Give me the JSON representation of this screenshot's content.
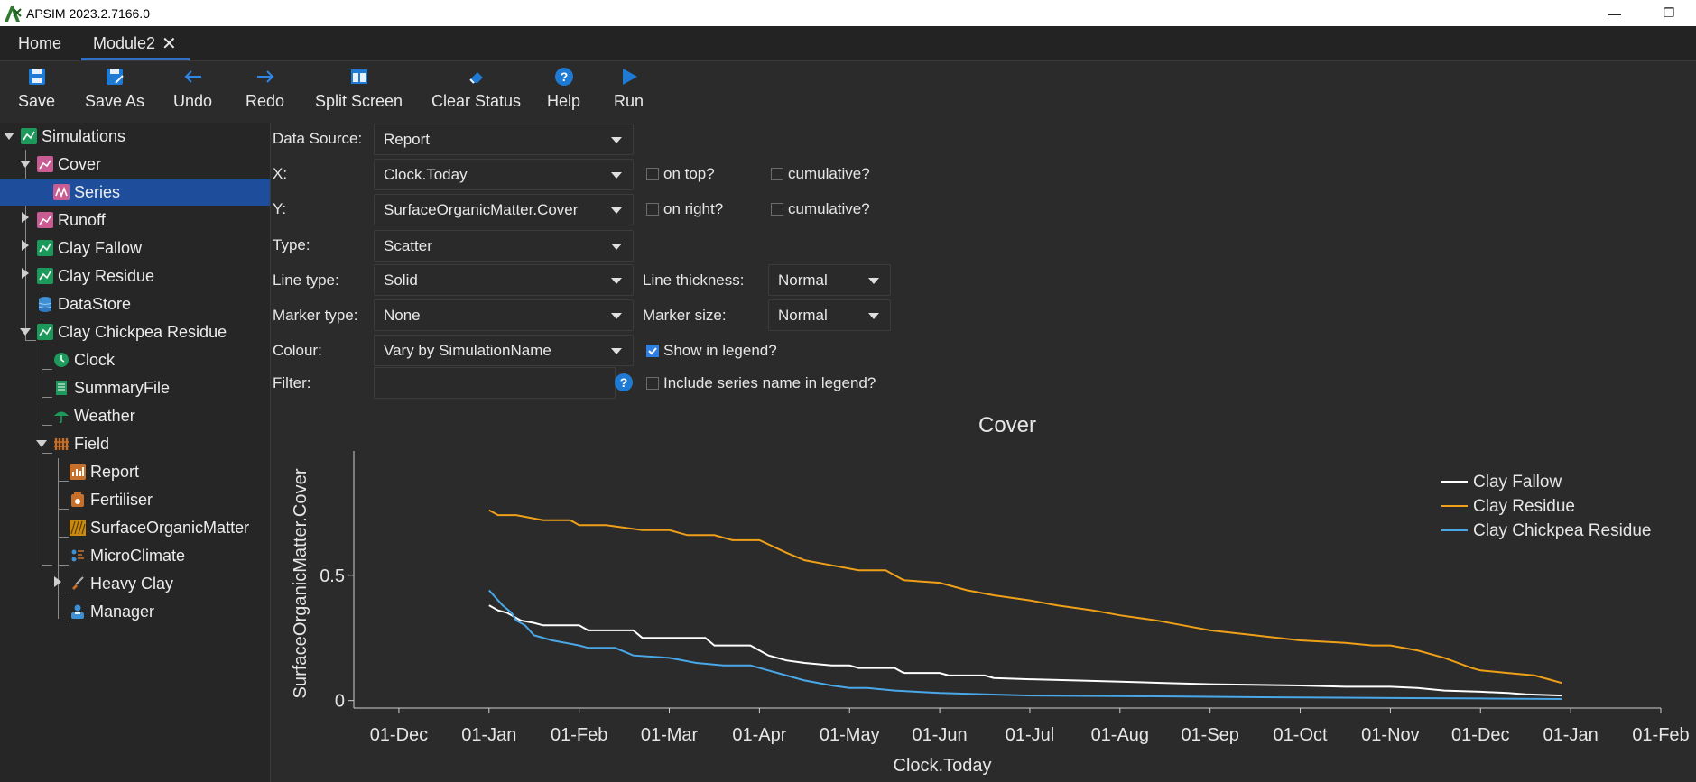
{
  "window": {
    "title": "APSIM 2023.2.7166.0",
    "minimize_glyph": "—",
    "restore_glyph": "❐"
  },
  "tabs": [
    {
      "label": "Home"
    },
    {
      "label": "Module2",
      "close_glyph": "✕"
    }
  ],
  "toolbar": {
    "save": "Save",
    "save_as": "Save As",
    "undo": "Undo",
    "redo": "Redo",
    "split_screen": "Split Screen",
    "clear_status": "Clear Status",
    "help": "Help",
    "run": "Run"
  },
  "tree": {
    "simulations": "Simulations",
    "cover": "Cover",
    "series": "Series",
    "runoff": "Runoff",
    "clay_fallow": "Clay Fallow",
    "clay_residue": "Clay Residue",
    "datastore": "DataStore",
    "clay_chickpea_residue": "Clay Chickpea Residue",
    "clock": "Clock",
    "summaryfile": "SummaryFile",
    "weather": "Weather",
    "field": "Field",
    "report": "Report",
    "fertiliser": "Fertiliser",
    "surface_organic_matter": "SurfaceOrganicMatter",
    "microclimate": "MicroClimate",
    "heavy_clay": "Heavy Clay",
    "manager": "Manager"
  },
  "form": {
    "data_source_label": "Data Source:",
    "data_source_value": "Report",
    "x_label": "X:",
    "x_value": "Clock.Today",
    "y_label": "Y:",
    "y_value": "SurfaceOrganicMatter.Cover",
    "type_label": "Type:",
    "type_value": "Scatter",
    "line_type_label": "Line type:",
    "line_type_value": "Solid",
    "marker_type_label": "Marker type:",
    "marker_type_value": "None",
    "colour_label": "Colour:",
    "colour_value": "Vary by SimulationName",
    "filter_label": "Filter:",
    "filter_value": "",
    "filter_help": "?",
    "on_top": "on top?",
    "on_right": "on right?",
    "cumulative_x": "cumulative?",
    "cumulative_y": "cumulative?",
    "line_thickness_label": "Line thickness:",
    "line_thickness_value": "Normal",
    "marker_size_label": "Marker size:",
    "marker_size_value": "Normal",
    "show_in_legend": "Show in legend?",
    "show_in_legend_checked": true,
    "include_series_name": "Include series name in legend?",
    "include_series_name_checked": false
  },
  "chart_data": {
    "type": "line",
    "title": "Cover",
    "xlabel": "Clock.Today",
    "ylabel": "SurfaceOrganicMatter.Cover",
    "x_ticks": [
      "01-Dec",
      "01-Jan",
      "01-Feb",
      "01-Mar",
      "01-Apr",
      "01-May",
      "01-Jun",
      "01-Jul",
      "01-Aug",
      "01-Sep",
      "01-Oct",
      "01-Nov",
      "01-Dec",
      "01-Jan",
      "01-Feb"
    ],
    "y_ticks": [
      "0",
      "0.5"
    ],
    "xlim_months": [
      -1.5,
      13.0
    ],
    "ylim": [
      -0.03,
      0.96
    ],
    "grid": false,
    "legend_position": "top-right",
    "series": [
      {
        "name": "Clay Fallow",
        "color": "#ffffff",
        "x": [
          0,
          0.1,
          0.2,
          0.3,
          0.35,
          0.5,
          0.6,
          1.0,
          1.1,
          1.6,
          1.7,
          2.4,
          2.5,
          2.9,
          3.0,
          3.1,
          3.3,
          3.5,
          3.8,
          4.0,
          4.1,
          4.5,
          4.6,
          5.0,
          5.1,
          5.5,
          5.6,
          6.0,
          6.5,
          7.0,
          7.5,
          8.0,
          9.0,
          9.5,
          10.0,
          10.3,
          10.6,
          11.0,
          11.3,
          11.5,
          11.9
        ],
        "y": [
          0.38,
          0.36,
          0.35,
          0.33,
          0.32,
          0.31,
          0.3,
          0.3,
          0.28,
          0.28,
          0.25,
          0.25,
          0.22,
          0.22,
          0.2,
          0.18,
          0.16,
          0.15,
          0.14,
          0.14,
          0.13,
          0.13,
          0.11,
          0.11,
          0.1,
          0.1,
          0.09,
          0.085,
          0.08,
          0.075,
          0.07,
          0.065,
          0.06,
          0.055,
          0.055,
          0.05,
          0.04,
          0.035,
          0.03,
          0.025,
          0.02
        ]
      },
      {
        "name": "Clay Residue",
        "color": "#f0a018",
        "x": [
          0,
          0.1,
          0.3,
          0.6,
          0.9,
          1.0,
          1.3,
          1.7,
          2.0,
          2.2,
          2.5,
          2.7,
          3.0,
          3.3,
          3.5,
          3.8,
          4.1,
          4.4,
          4.6,
          5.0,
          5.3,
          5.6,
          6.0,
          6.3,
          6.7,
          7.0,
          7.4,
          7.7,
          8.0,
          8.5,
          9.0,
          9.5,
          9.8,
          10.0,
          10.3,
          10.6,
          10.9,
          11.0,
          11.3,
          11.6,
          11.8,
          11.9
        ],
        "y": [
          0.76,
          0.74,
          0.74,
          0.72,
          0.72,
          0.7,
          0.7,
          0.68,
          0.68,
          0.66,
          0.66,
          0.64,
          0.64,
          0.59,
          0.56,
          0.54,
          0.52,
          0.52,
          0.48,
          0.47,
          0.44,
          0.42,
          0.4,
          0.38,
          0.36,
          0.34,
          0.32,
          0.3,
          0.28,
          0.26,
          0.24,
          0.23,
          0.22,
          0.22,
          0.2,
          0.17,
          0.13,
          0.12,
          0.11,
          0.1,
          0.08,
          0.07
        ]
      },
      {
        "name": "Clay Chickpea Residue",
        "color": "#4aa8e8",
        "x": [
          0,
          0.05,
          0.15,
          0.25,
          0.3,
          0.4,
          0.5,
          0.7,
          1.0,
          1.1,
          1.4,
          1.6,
          2.0,
          2.3,
          2.6,
          2.9,
          3.1,
          3.3,
          3.5,
          3.8,
          4.0,
          4.2,
          4.5,
          5.0,
          5.5,
          6.0,
          7.0,
          8.0,
          9.0,
          10.0,
          11.0,
          11.9
        ],
        "y": [
          0.44,
          0.42,
          0.38,
          0.35,
          0.32,
          0.3,
          0.26,
          0.24,
          0.22,
          0.21,
          0.21,
          0.18,
          0.17,
          0.15,
          0.14,
          0.14,
          0.12,
          0.1,
          0.08,
          0.06,
          0.05,
          0.05,
          0.04,
          0.03,
          0.025,
          0.02,
          0.018,
          0.015,
          0.012,
          0.01,
          0.008,
          0.006
        ]
      }
    ]
  }
}
